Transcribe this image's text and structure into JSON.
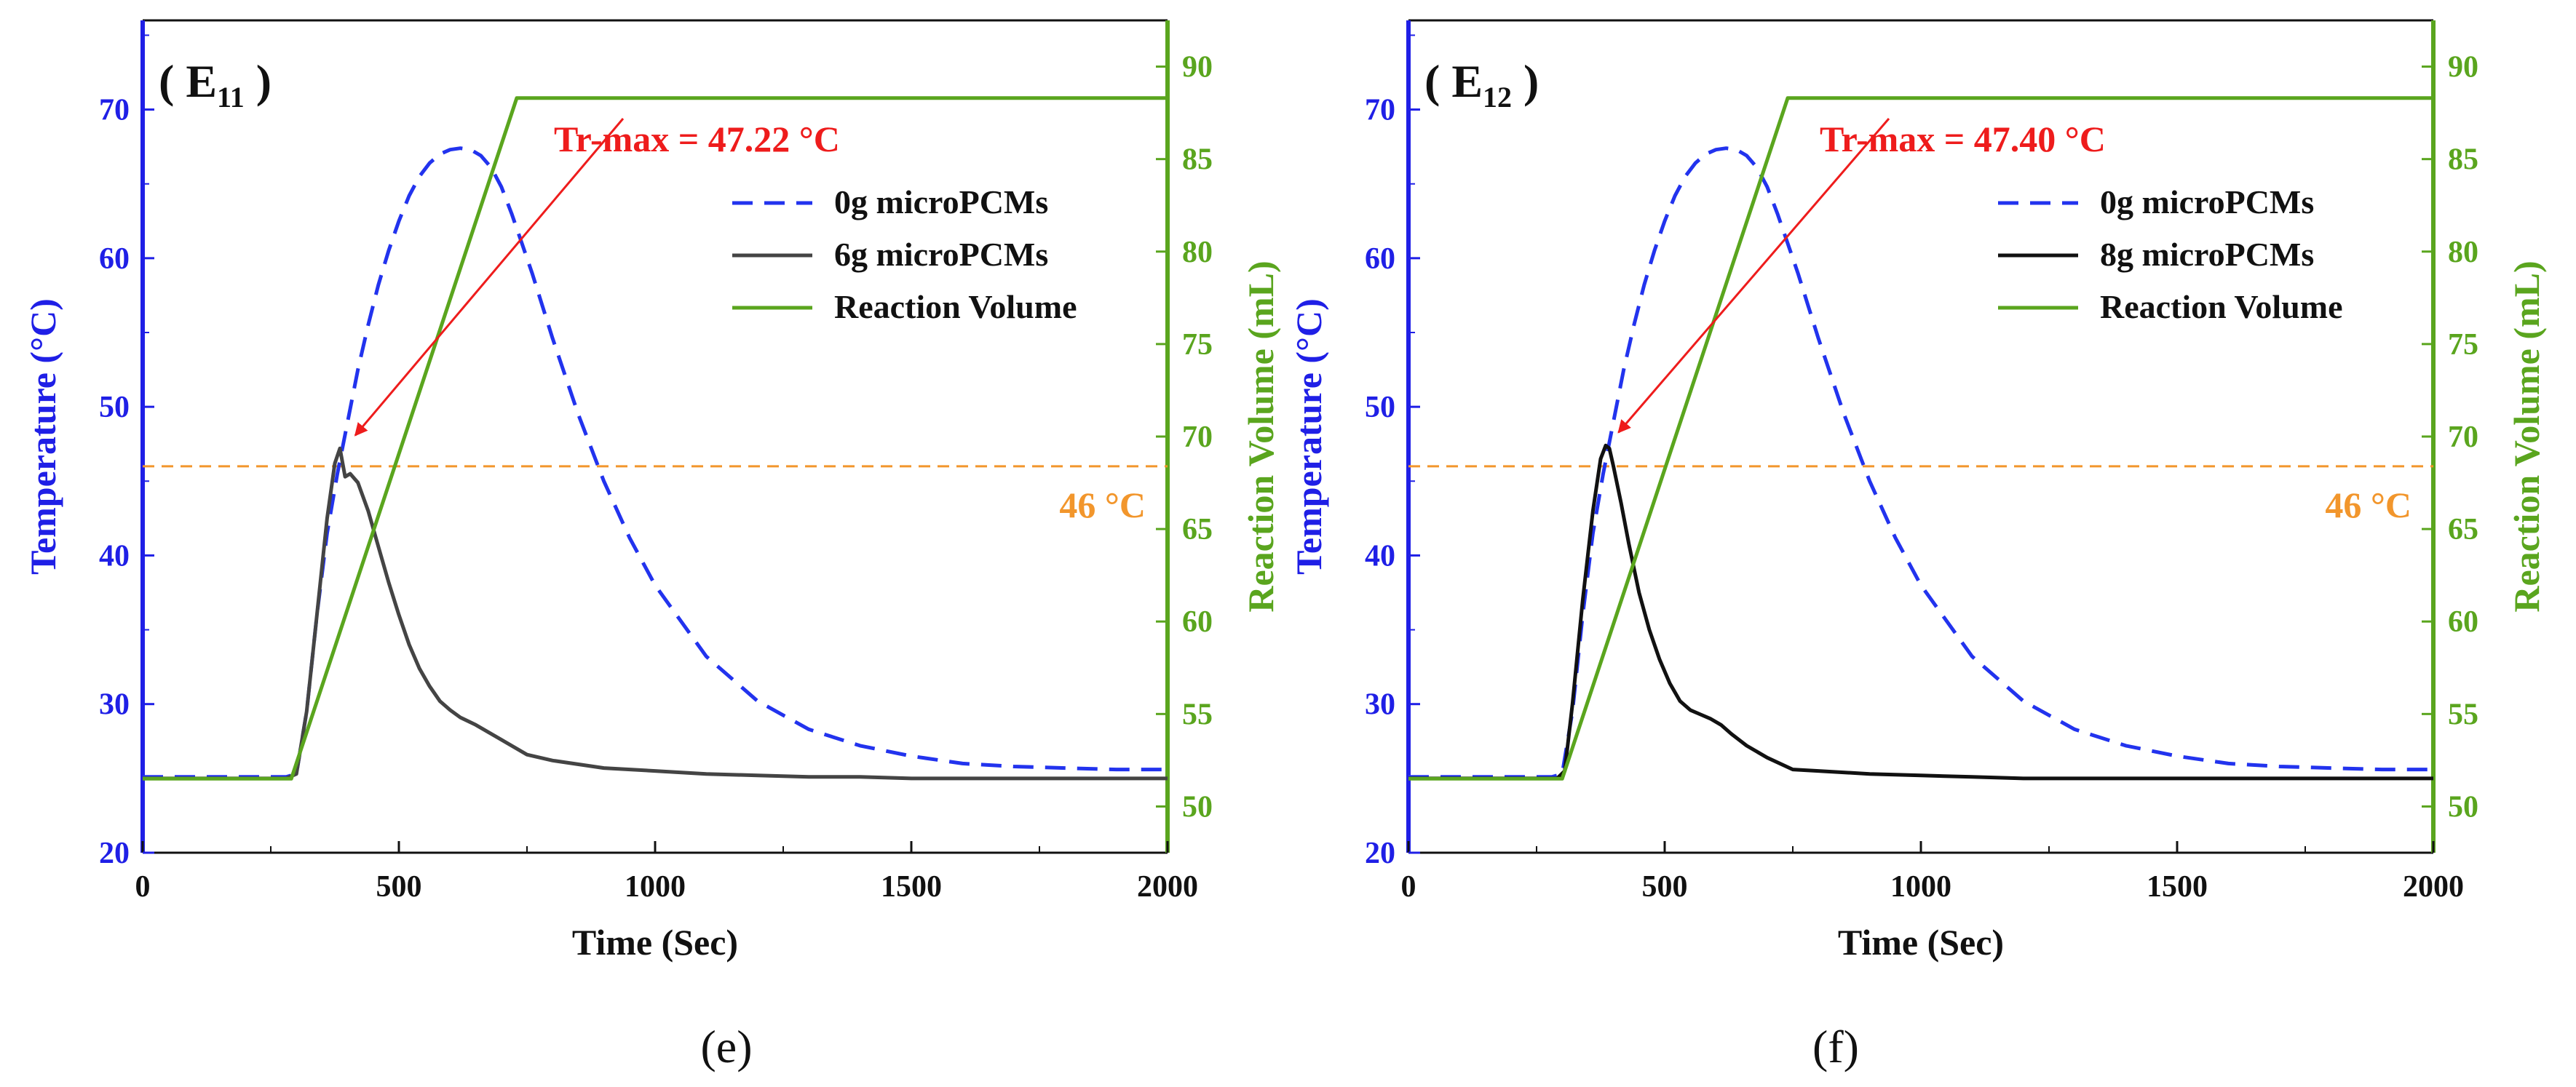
{
  "colors": {
    "temp_axis": "#1f1fe6",
    "volume_axis": "#5aa51e",
    "dashed_series": "#2233ee",
    "threshold": "#f2962c",
    "annotation": "#ee1c1c",
    "frame": "#111111"
  },
  "chart_data": [
    {
      "type": "line",
      "panel_tag": "( E",
      "panel_tag_sub": "11",
      "panel_tag_end": " )",
      "caption": "(e)",
      "xlabel": "Time (Sec)",
      "ylabel": "Temperature (°C)",
      "y2label": "Reaction Volume (mL)",
      "xlim": [
        0,
        2000
      ],
      "ylim": [
        20,
        76
      ],
      "y2lim": [
        47.5,
        92.5
      ],
      "x_ticks": [
        0,
        500,
        1000,
        1500,
        2000
      ],
      "y_ticks": [
        20,
        30,
        40,
        50,
        60,
        70
      ],
      "y2_ticks": [
        50,
        55,
        60,
        65,
        70,
        75,
        80,
        85,
        90
      ],
      "grid": false,
      "legend_position": "upper-right",
      "series": [
        {
          "name": "0g microPCMs",
          "axis": "left",
          "style": "dashed",
          "color": "#2233ee",
          "x": [
            0,
            280,
            300,
            320,
            340,
            360,
            380,
            400,
            420,
            440,
            460,
            480,
            500,
            520,
            540,
            560,
            580,
            600,
            620,
            640,
            660,
            680,
            700,
            720,
            740,
            760,
            780,
            800,
            850,
            900,
            950,
            1000,
            1100,
            1200,
            1300,
            1400,
            1500,
            1600,
            1700,
            1800,
            1900,
            2000
          ],
          "y": [
            25.1,
            25.1,
            25.3,
            29.5,
            36.0,
            41.5,
            45.5,
            49.0,
            52.5,
            55.5,
            58.2,
            60.5,
            62.5,
            64.2,
            65.5,
            66.4,
            67.0,
            67.3,
            67.4,
            67.3,
            66.9,
            66.1,
            64.8,
            63.0,
            61.0,
            59.0,
            56.8,
            54.6,
            49.5,
            45.0,
            41.2,
            38.0,
            33.2,
            30.2,
            28.3,
            27.2,
            26.5,
            26.0,
            25.8,
            25.7,
            25.6,
            25.6
          ]
        },
        {
          "name": "6g microPCMs",
          "axis": "left",
          "style": "solid",
          "color": "#444444",
          "x": [
            0,
            280,
            300,
            320,
            340,
            360,
            375,
            385,
            395,
            405,
            420,
            440,
            460,
            480,
            500,
            520,
            540,
            560,
            580,
            600,
            620,
            650,
            700,
            750,
            800,
            900,
            1000,
            1100,
            1200,
            1300,
            1400,
            1500,
            1600,
            1700,
            1800,
            1900,
            2000
          ],
          "y": [
            25.0,
            25.0,
            25.3,
            29.5,
            36.0,
            42.5,
            46.2,
            47.2,
            45.3,
            45.5,
            44.9,
            43.0,
            40.6,
            38.2,
            36.0,
            34.0,
            32.4,
            31.2,
            30.2,
            29.6,
            29.1,
            28.6,
            27.6,
            26.6,
            26.2,
            25.7,
            25.5,
            25.3,
            25.2,
            25.1,
            25.1,
            25.0,
            25.0,
            25.0,
            25.0,
            25.0,
            25.0
          ]
        },
        {
          "name": "Reaction Volume",
          "axis": "right",
          "style": "solid",
          "color": "#5aa51e",
          "x": [
            0,
            290,
            730,
            2000
          ],
          "y": [
            51.5,
            51.5,
            88.3,
            88.3
          ]
        }
      ],
      "threshold": {
        "value": 46,
        "label": "46 °C",
        "axis": "left"
      },
      "annotation": {
        "text": "Tr-max = 47.22 °C",
        "x": 395,
        "y": 47.2
      }
    },
    {
      "type": "line",
      "panel_tag": "( E",
      "panel_tag_sub": "12",
      "panel_tag_end": " )",
      "caption": "(f)",
      "xlabel": "Time (Sec)",
      "ylabel": "Temperature (°C)",
      "y2label": "Reaction Volume (mL)",
      "xlim": [
        0,
        2000
      ],
      "ylim": [
        20,
        76
      ],
      "y2lim": [
        47.5,
        92.5
      ],
      "x_ticks": [
        0,
        500,
        1000,
        1500,
        2000
      ],
      "y_ticks": [
        20,
        30,
        40,
        50,
        60,
        70
      ],
      "y2_ticks": [
        50,
        55,
        60,
        65,
        70,
        75,
        80,
        85,
        90
      ],
      "grid": false,
      "legend_position": "upper-right",
      "series": [
        {
          "name": "0g microPCMs",
          "axis": "left",
          "style": "dashed",
          "color": "#2233ee",
          "x": [
            0,
            280,
            300,
            320,
            340,
            360,
            380,
            400,
            420,
            440,
            460,
            480,
            500,
            520,
            540,
            560,
            580,
            600,
            620,
            640,
            660,
            680,
            700,
            720,
            740,
            760,
            780,
            800,
            850,
            900,
            950,
            1000,
            1100,
            1200,
            1300,
            1400,
            1500,
            1600,
            1700,
            1800,
            1900,
            2000
          ],
          "y": [
            25.1,
            25.1,
            25.3,
            29.5,
            36.0,
            41.5,
            45.5,
            49.0,
            52.5,
            55.5,
            58.2,
            60.5,
            62.5,
            64.2,
            65.5,
            66.4,
            67.0,
            67.3,
            67.4,
            67.3,
            66.9,
            66.1,
            64.8,
            63.0,
            61.0,
            59.0,
            56.8,
            54.6,
            49.5,
            45.0,
            41.2,
            38.0,
            33.2,
            30.2,
            28.3,
            27.2,
            26.5,
            26.0,
            25.8,
            25.7,
            25.6,
            25.6
          ]
        },
        {
          "name": "8g microPCMs",
          "axis": "left",
          "style": "solid",
          "color": "#111111",
          "x": [
            0,
            290,
            305,
            320,
            340,
            360,
            375,
            385,
            392,
            400,
            415,
            430,
            450,
            470,
            490,
            510,
            530,
            550,
            570,
            590,
            610,
            630,
            660,
            700,
            750,
            800,
            900,
            1000,
            1100,
            1200,
            1300,
            1400,
            1500,
            1600,
            1700,
            1800,
            1900,
            2000
          ],
          "y": [
            25.0,
            25.0,
            25.5,
            30.0,
            37.0,
            43.0,
            46.5,
            47.4,
            47.2,
            46.0,
            43.5,
            40.8,
            37.5,
            35.0,
            33.0,
            31.4,
            30.2,
            29.6,
            29.3,
            29.0,
            28.6,
            28.0,
            27.2,
            26.4,
            25.6,
            25.5,
            25.3,
            25.2,
            25.1,
            25.0,
            25.0,
            25.0,
            25.0,
            25.0,
            25.0,
            25.0,
            25.0,
            25.0
          ]
        },
        {
          "name": "Reaction Volume",
          "axis": "right",
          "style": "solid",
          "color": "#5aa51e",
          "x": [
            0,
            300,
            740,
            2000
          ],
          "y": [
            51.5,
            51.5,
            88.3,
            88.3
          ]
        }
      ],
      "threshold": {
        "value": 46,
        "label": "46 °C",
        "axis": "left"
      },
      "annotation": {
        "text": "Tr-max = 47.40 °C",
        "x": 390,
        "y": 47.4
      }
    }
  ]
}
